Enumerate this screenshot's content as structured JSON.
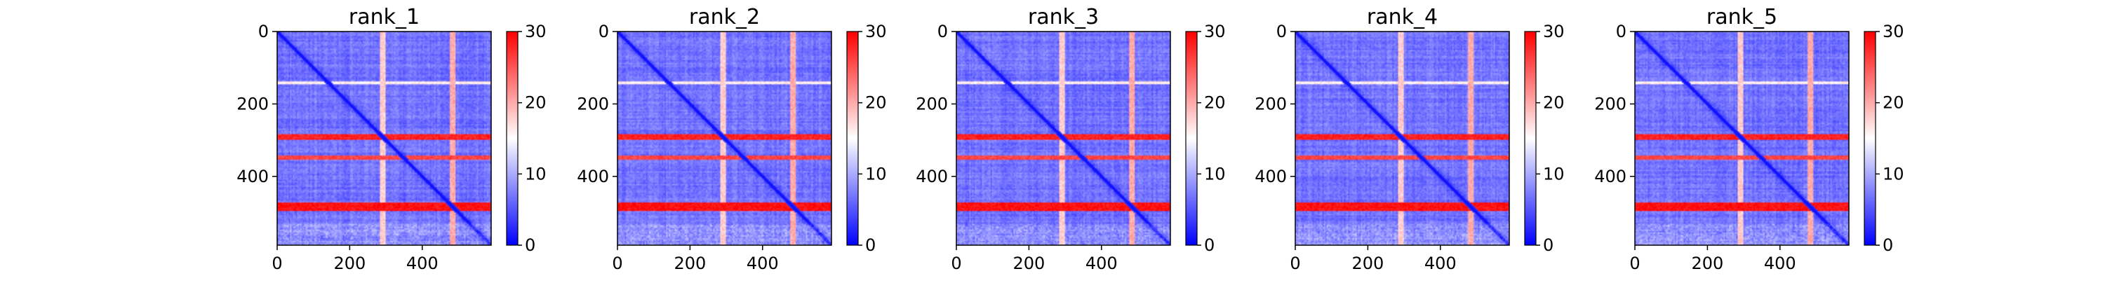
{
  "figure": {
    "background": "#ffffff"
  },
  "colormap": {
    "name": "bwr",
    "low": "#0000ff",
    "mid": "#ffffff",
    "high": "#ff0000"
  },
  "chart_data": [
    {
      "type": "heatmap",
      "title": "rank_1",
      "matrix_size": 590,
      "xticks": [
        0,
        200,
        400
      ],
      "yticks": [
        0,
        200,
        400
      ],
      "colorbar": {
        "vmin": 0,
        "vmax": 30,
        "ticks": [
          0,
          10,
          20,
          30
        ]
      },
      "bands": [
        {
          "axis": "row",
          "center": 292,
          "width": 16,
          "value": 28
        },
        {
          "axis": "row",
          "center": 348,
          "width": 14,
          "value": 26
        },
        {
          "axis": "row",
          "center": 483,
          "width": 22,
          "value": 29
        },
        {
          "axis": "row",
          "center": 140,
          "width": 8,
          "value": 16
        },
        {
          "axis": "col",
          "center": 292,
          "width": 14,
          "value": 18
        },
        {
          "axis": "col",
          "center": 485,
          "width": 16,
          "value": 20
        }
      ]
    },
    {
      "type": "heatmap",
      "title": "rank_2",
      "matrix_size": 590,
      "xticks": [
        0,
        200,
        400
      ],
      "yticks": [
        0,
        200,
        400
      ],
      "colorbar": {
        "vmin": 0,
        "vmax": 30,
        "ticks": [
          0,
          10,
          20,
          30
        ]
      },
      "bands": [
        {
          "axis": "row",
          "center": 292,
          "width": 16,
          "value": 28
        },
        {
          "axis": "row",
          "center": 348,
          "width": 14,
          "value": 26
        },
        {
          "axis": "row",
          "center": 483,
          "width": 22,
          "value": 29
        },
        {
          "axis": "row",
          "center": 140,
          "width": 8,
          "value": 16
        },
        {
          "axis": "col",
          "center": 292,
          "width": 14,
          "value": 18
        },
        {
          "axis": "col",
          "center": 485,
          "width": 16,
          "value": 20
        }
      ]
    },
    {
      "type": "heatmap",
      "title": "rank_3",
      "matrix_size": 590,
      "xticks": [
        0,
        200,
        400
      ],
      "yticks": [
        0,
        200,
        400
      ],
      "colorbar": {
        "vmin": 0,
        "vmax": 30,
        "ticks": [
          0,
          10,
          20,
          30
        ]
      },
      "bands": [
        {
          "axis": "row",
          "center": 292,
          "width": 16,
          "value": 28
        },
        {
          "axis": "row",
          "center": 348,
          "width": 14,
          "value": 26
        },
        {
          "axis": "row",
          "center": 483,
          "width": 22,
          "value": 29
        },
        {
          "axis": "row",
          "center": 140,
          "width": 8,
          "value": 16
        },
        {
          "axis": "col",
          "center": 292,
          "width": 14,
          "value": 18
        },
        {
          "axis": "col",
          "center": 485,
          "width": 16,
          "value": 20
        }
      ]
    },
    {
      "type": "heatmap",
      "title": "rank_4",
      "matrix_size": 590,
      "xticks": [
        0,
        200,
        400
      ],
      "yticks": [
        0,
        200,
        400
      ],
      "colorbar": {
        "vmin": 0,
        "vmax": 30,
        "ticks": [
          0,
          10,
          20,
          30
        ]
      },
      "bands": [
        {
          "axis": "row",
          "center": 292,
          "width": 16,
          "value": 28
        },
        {
          "axis": "row",
          "center": 348,
          "width": 14,
          "value": 26
        },
        {
          "axis": "row",
          "center": 483,
          "width": 22,
          "value": 29
        },
        {
          "axis": "row",
          "center": 140,
          "width": 8,
          "value": 16
        },
        {
          "axis": "col",
          "center": 292,
          "width": 14,
          "value": 18
        },
        {
          "axis": "col",
          "center": 485,
          "width": 16,
          "value": 20
        }
      ]
    },
    {
      "type": "heatmap",
      "title": "rank_5",
      "matrix_size": 590,
      "xticks": [
        0,
        200,
        400
      ],
      "yticks": [
        0,
        200,
        400
      ],
      "colorbar": {
        "vmin": 0,
        "vmax": 30,
        "ticks": [
          0,
          10,
          20,
          30
        ]
      },
      "bands": [
        {
          "axis": "row",
          "center": 292,
          "width": 16,
          "value": 28
        },
        {
          "axis": "row",
          "center": 348,
          "width": 14,
          "value": 26
        },
        {
          "axis": "row",
          "center": 483,
          "width": 22,
          "value": 29
        },
        {
          "axis": "row",
          "center": 140,
          "width": 8,
          "value": 16
        },
        {
          "axis": "col",
          "center": 292,
          "width": 14,
          "value": 18
        },
        {
          "axis": "col",
          "center": 485,
          "width": 16,
          "value": 20
        }
      ]
    }
  ]
}
